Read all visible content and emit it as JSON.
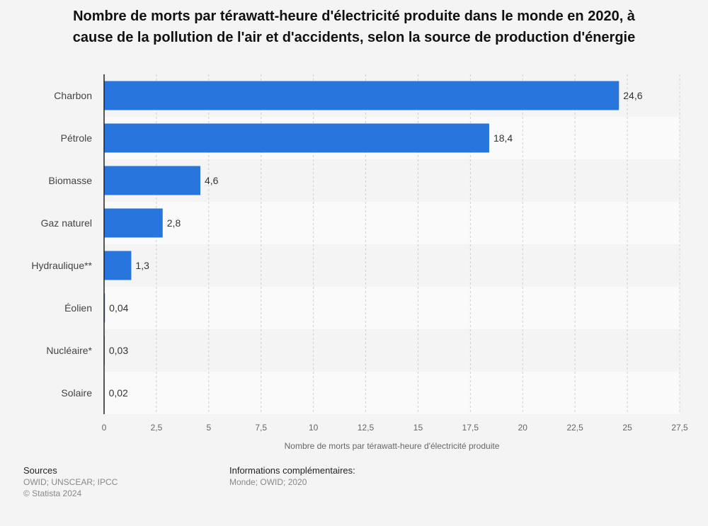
{
  "chart_data": {
    "type": "bar",
    "orientation": "horizontal",
    "title_lines": [
      "Nombre de morts par térawatt-heure d'électricité produite dans le monde en 2020, à",
      "cause de la pollution de l'air et d'accidents, selon la source de production d'énergie"
    ],
    "categories": [
      "Charbon",
      "Pétrole",
      "Biomasse",
      "Gaz naturel",
      "Hydraulique**",
      "Éolien",
      "Nucléaire*",
      "Solaire"
    ],
    "values": [
      24.6,
      18.4,
      4.6,
      2.8,
      1.3,
      0.04,
      0.03,
      0.02
    ],
    "value_labels": [
      "24,6",
      "18,4",
      "4,6",
      "2,8",
      "1,3",
      "0,04",
      "0,03",
      "0,02"
    ],
    "xlabel": "Nombre de morts par térawatt-heure d'électricité produite",
    "xlim": [
      0,
      27.5
    ],
    "xticks": [
      0,
      2.5,
      5,
      7.5,
      10,
      12.5,
      15,
      17.5,
      20,
      22.5,
      25,
      27.5
    ],
    "xtick_labels": [
      "0",
      "2,5",
      "5",
      "7,5",
      "10",
      "12,5",
      "15",
      "17,5",
      "20",
      "22,5",
      "25",
      "27,5"
    ],
    "grid": true,
    "bar_color": "#2876dd"
  },
  "footer": {
    "sources_label": "Sources",
    "sources_text": "OWID; UNSCEAR; IPCC",
    "copyright": "© Statista 2024",
    "info_label": "Informations complémentaires:",
    "info_text": "Monde; OWID; 2020"
  }
}
